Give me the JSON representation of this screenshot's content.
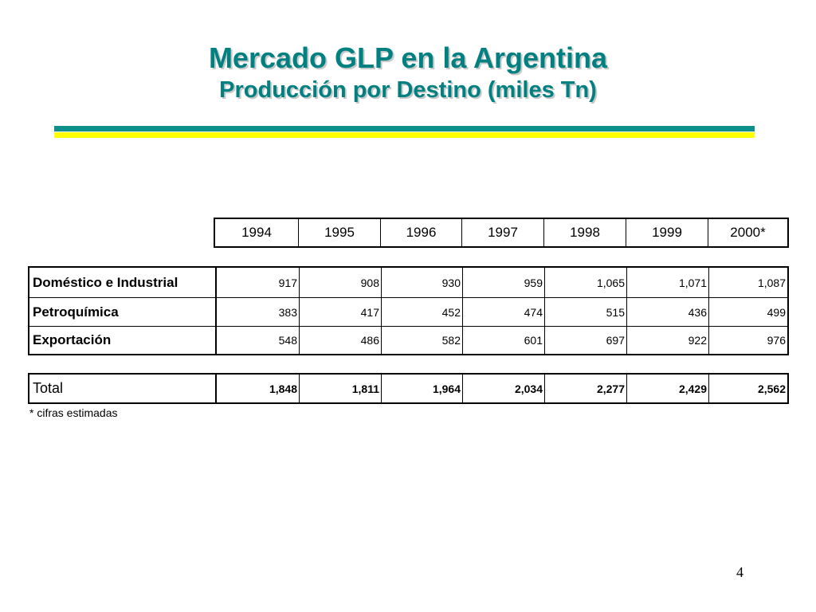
{
  "title": "Mercado GLP en la Argentina",
  "subtitle": "Producción por Destino (miles Tn)",
  "years": [
    "1994",
    "1995",
    "1996",
    "1997",
    "1998",
    "1999",
    "2000*"
  ],
  "rows": [
    {
      "label": "Doméstico e Industrial",
      "values": [
        "917",
        "908",
        "930",
        "959",
        "1,065",
        "1,071",
        "1,087"
      ]
    },
    {
      "label": "Petroquímica",
      "values": [
        "383",
        "417",
        "452",
        "474",
        "515",
        "436",
        "499"
      ]
    },
    {
      "label": "Exportación",
      "values": [
        "548",
        "486",
        "582",
        "601",
        "697",
        "922",
        "976"
      ]
    }
  ],
  "total": {
    "label": "Total",
    "values": [
      "1,848",
      "1,811",
      "1,964",
      "2,034",
      "2,277",
      "2,429",
      "2,562"
    ]
  },
  "footnote": "* cifras estimadas",
  "page_number": "4",
  "colors": {
    "title": "#008080",
    "rule_teal": "#0f8f8a",
    "rule_yellow": "#ffff00"
  }
}
